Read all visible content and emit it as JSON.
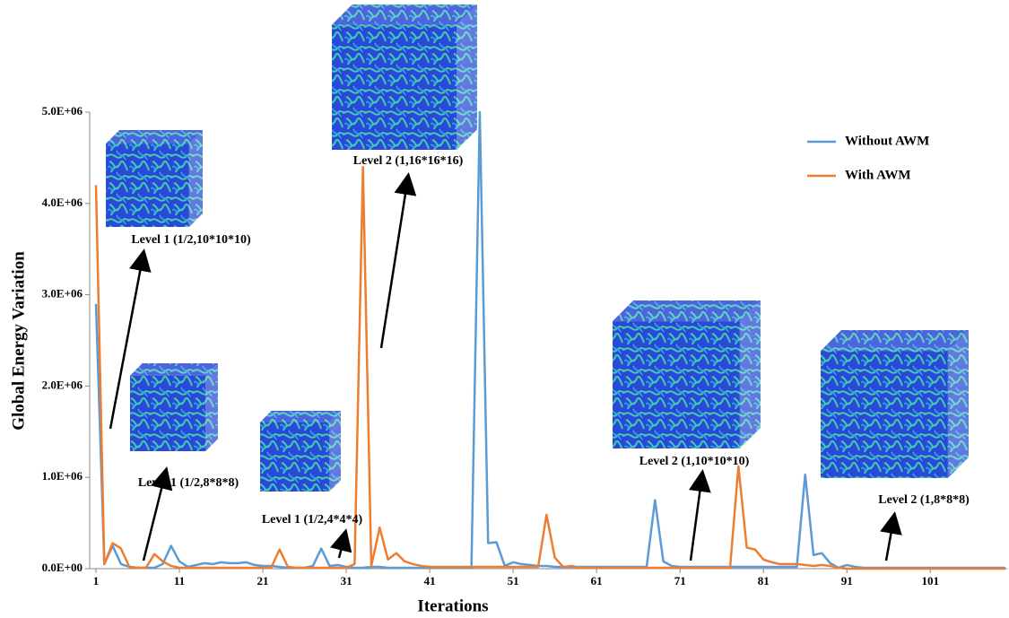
{
  "chart_data": {
    "type": "line",
    "x_label": "Iterations",
    "y_label": "Global Energy Variation",
    "xlim": [
      1,
      110
    ],
    "ylim": [
      0,
      5000000
    ],
    "xticks": [
      1,
      11,
      21,
      31,
      41,
      51,
      61,
      71,
      81,
      91,
      101
    ],
    "yticks": [
      {
        "value": 0,
        "label": "0.0E+00"
      },
      {
        "value": 1000000,
        "label": "1.0E+06"
      },
      {
        "value": 2000000,
        "label": "2.0E+06"
      },
      {
        "value": 3000000,
        "label": "3.0E+06"
      },
      {
        "value": 4000000,
        "label": "4.0E+06"
      },
      {
        "value": 5000000,
        "label": "5.0E+06"
      }
    ],
    "legend_position": "upper right",
    "x": [
      1,
      2,
      3,
      4,
      5,
      6,
      7,
      8,
      9,
      10,
      11,
      12,
      13,
      14,
      15,
      16,
      17,
      18,
      19,
      20,
      21,
      22,
      23,
      24,
      25,
      26,
      27,
      28,
      29,
      30,
      31,
      32,
      33,
      34,
      35,
      36,
      37,
      38,
      39,
      40,
      41,
      42,
      43,
      44,
      45,
      46,
      47,
      48,
      49,
      50,
      51,
      52,
      53,
      54,
      55,
      56,
      57,
      58,
      59,
      60,
      61,
      62,
      63,
      64,
      65,
      66,
      67,
      68,
      69,
      70,
      71,
      72,
      73,
      74,
      75,
      76,
      77,
      78,
      79,
      80,
      81,
      82,
      83,
      84,
      85,
      86,
      87,
      88,
      89,
      90,
      91,
      92,
      93,
      94,
      95,
      96,
      97,
      98,
      99,
      100,
      101,
      102,
      103,
      104,
      105,
      106,
      107,
      108,
      109,
      110
    ],
    "series": [
      {
        "name": "Without AWM",
        "color": "#5b9bd5",
        "values": [
          2900000,
          50000,
          250000,
          50000,
          20000,
          10000,
          10000,
          10000,
          50000,
          250000,
          80000,
          20000,
          40000,
          60000,
          50000,
          70000,
          60000,
          60000,
          70000,
          40000,
          30000,
          30000,
          20000,
          10000,
          10000,
          10000,
          30000,
          220000,
          30000,
          40000,
          20000,
          10000,
          10000,
          20000,
          20000,
          10000,
          10000,
          10000,
          10000,
          10000,
          10000,
          10000,
          10000,
          10000,
          10000,
          10000,
          5000000,
          280000,
          290000,
          30000,
          70000,
          50000,
          40000,
          30000,
          30000,
          20000,
          20000,
          20000,
          20000,
          20000,
          20000,
          20000,
          20000,
          20000,
          20000,
          20000,
          20000,
          750000,
          80000,
          30000,
          20000,
          20000,
          20000,
          20000,
          20000,
          20000,
          20000,
          20000,
          20000,
          20000,
          20000,
          20000,
          20000,
          20000,
          20000,
          1030000,
          150000,
          170000,
          60000,
          10000,
          40000,
          20000,
          10000,
          10000,
          10000,
          10000,
          10000,
          10000,
          10000,
          10000,
          10000,
          10000,
          10000,
          10000,
          10000,
          10000,
          10000,
          10000,
          10000,
          10000
        ]
      },
      {
        "name": "With AWM",
        "color": "#ed7d31",
        "values": [
          4200000,
          50000,
          280000,
          220000,
          20000,
          10000,
          10000,
          160000,
          80000,
          30000,
          10000,
          10000,
          10000,
          10000,
          10000,
          10000,
          10000,
          10000,
          10000,
          10000,
          10000,
          10000,
          210000,
          20000,
          10000,
          10000,
          10000,
          10000,
          10000,
          10000,
          10000,
          50000,
          4400000,
          30000,
          450000,
          100000,
          170000,
          80000,
          50000,
          30000,
          20000,
          20000,
          20000,
          20000,
          20000,
          20000,
          20000,
          20000,
          20000,
          20000,
          20000,
          20000,
          20000,
          20000,
          590000,
          120000,
          20000,
          30000,
          10000,
          10000,
          10000,
          10000,
          10000,
          10000,
          10000,
          10000,
          10000,
          10000,
          10000,
          10000,
          10000,
          10000,
          10000,
          10000,
          10000,
          10000,
          10000,
          1120000,
          230000,
          210000,
          100000,
          70000,
          50000,
          50000,
          50000,
          40000,
          30000,
          40000,
          30000,
          10000,
          0,
          0,
          0,
          0,
          0,
          0,
          0,
          0,
          0,
          0,
          0,
          0,
          0,
          0,
          0,
          0,
          0,
          0,
          0,
          0
        ]
      }
    ],
    "annotations": [
      "Level 1 (1/2,10*10*10)",
      "Level 1 (1/2,8*8*8)",
      "Level 1 (1/2,4*4*4)",
      "Level 2 (1,16*16*16)",
      "Level 2 (1,10*10*10)",
      "Level 2 (1,8*8*8)"
    ]
  }
}
